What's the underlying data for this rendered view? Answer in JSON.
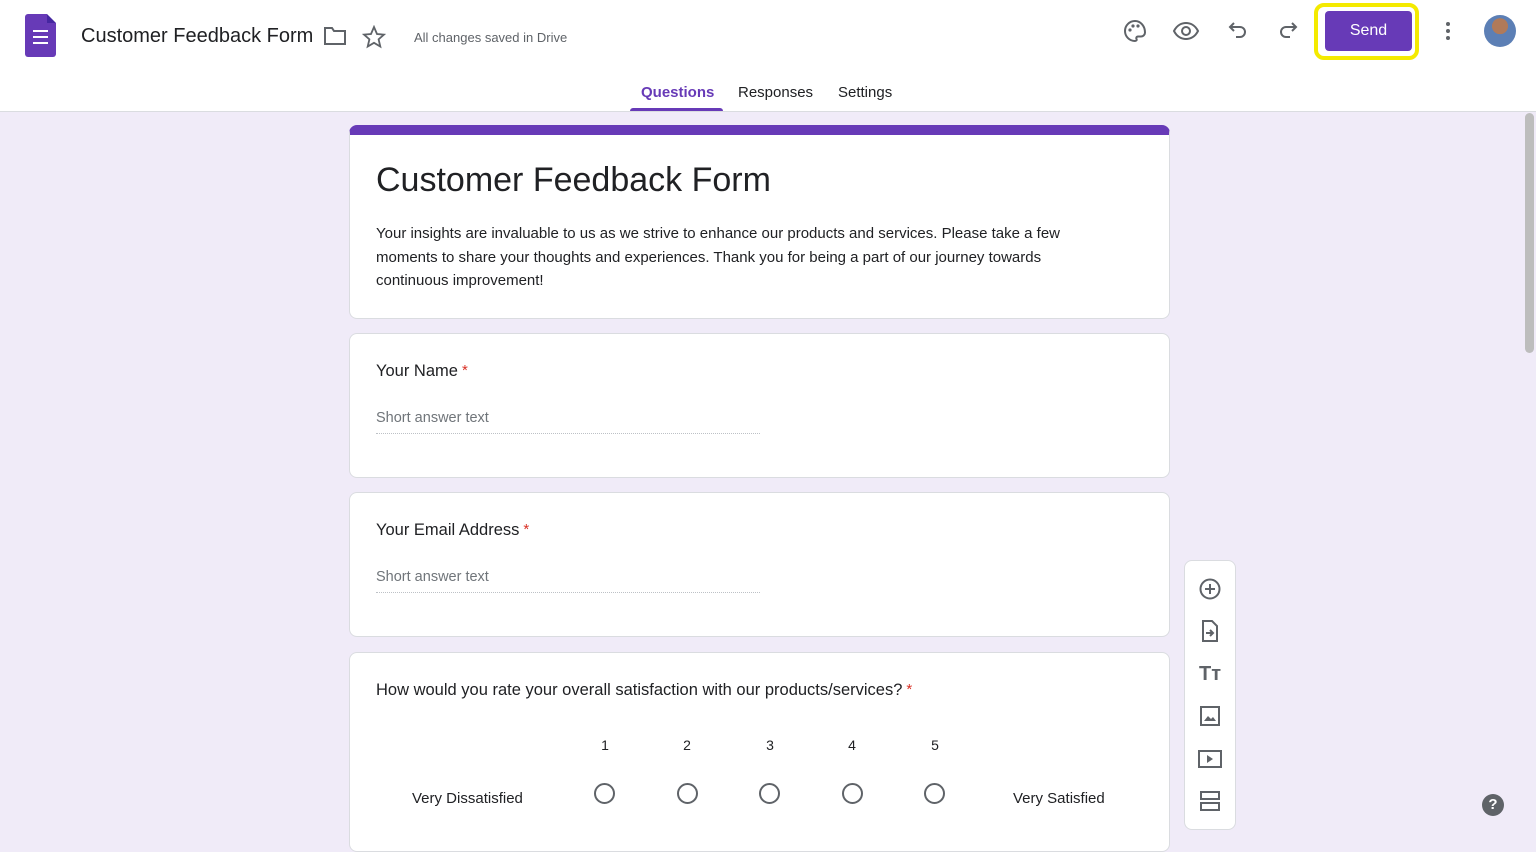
{
  "header": {
    "doc_title": "Customer Feedback Form",
    "saved_status": "All changes saved in Drive",
    "send_label": "Send",
    "icons": [
      "forms-logo-icon",
      "folder-icon",
      "star-icon",
      "palette-icon",
      "eye-icon",
      "undo-icon",
      "redo-icon",
      "more-vert-icon",
      "avatar"
    ]
  },
  "tabs": [
    {
      "label": "Questions",
      "active": true
    },
    {
      "label": "Responses"
    },
    {
      "label": "Settings"
    }
  ],
  "form": {
    "title": "Customer Feedback Form",
    "description": "Your insights are invaluable to us as we strive to enhance our products and services. Please take a few moments to share your thoughts and experiences. Thank you for being a part of our journey towards continuous improvement!"
  },
  "questions": [
    {
      "title": "Your Name",
      "required": "*",
      "placeholder": "Short answer text"
    },
    {
      "title": "Your Email Address",
      "required": "*",
      "placeholder": "Short answer text"
    },
    {
      "title": "How would you rate your overall satisfaction with our products/services?",
      "required": "*",
      "scale": [
        "1",
        "2",
        "3",
        "4",
        "5"
      ],
      "low_label": "Very Dissatisfied",
      "high_label": "Very Satisfied"
    }
  ],
  "toolbar": [
    "add-question-icon",
    "import-questions-icon",
    "add-title-icon",
    "add-image-icon",
    "add-video-icon",
    "add-section-icon"
  ],
  "help": "?",
  "colors": {
    "accent": "#673ab7",
    "background": "#f0ebf8",
    "highlight": "#f4ea00",
    "required": "#d93025"
  }
}
